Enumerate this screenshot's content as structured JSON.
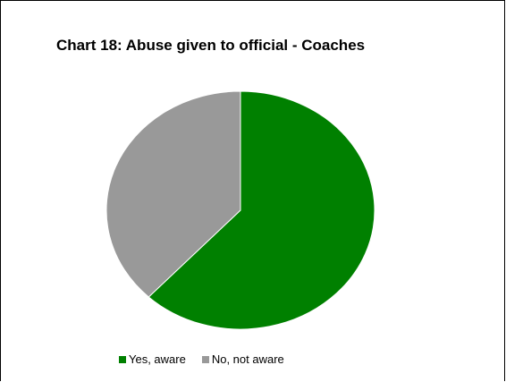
{
  "chart_data": {
    "type": "pie",
    "title": "Chart 18: Abuse given to official - Coaches",
    "categories": [
      "Yes, aware",
      "No, not aware"
    ],
    "values": [
      62,
      38
    ],
    "colors": [
      "#008000",
      "#999999"
    ],
    "legend_position": "bottom"
  }
}
